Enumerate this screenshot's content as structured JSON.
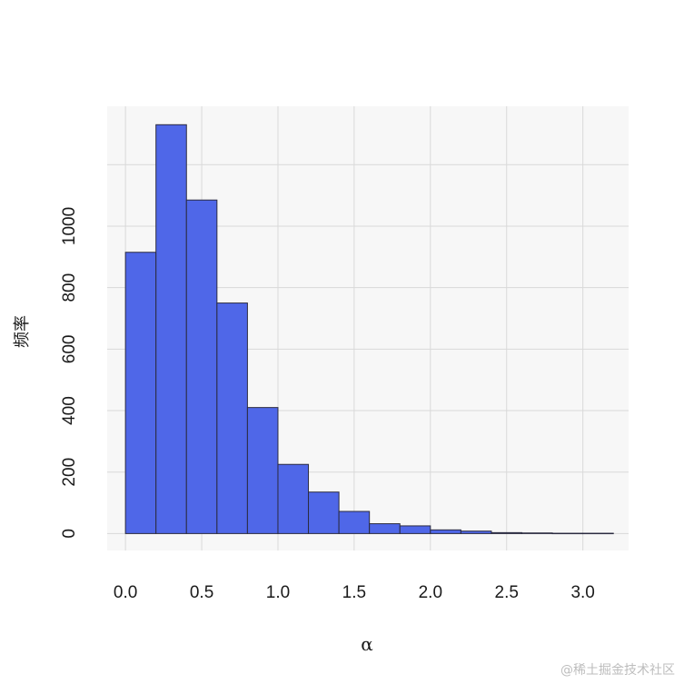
{
  "chart_data": {
    "type": "bar",
    "title": "",
    "xlabel": "α",
    "ylabel": "频率",
    "bin_width": 0.2,
    "bins": [
      {
        "start": 0.0,
        "end": 0.2,
        "count": 915
      },
      {
        "start": 0.2,
        "end": 0.4,
        "count": 1330
      },
      {
        "start": 0.4,
        "end": 0.6,
        "count": 1085
      },
      {
        "start": 0.6,
        "end": 0.8,
        "count": 750
      },
      {
        "start": 0.8,
        "end": 1.0,
        "count": 410
      },
      {
        "start": 1.0,
        "end": 1.2,
        "count": 225
      },
      {
        "start": 1.2,
        "end": 1.4,
        "count": 135
      },
      {
        "start": 1.4,
        "end": 1.6,
        "count": 72
      },
      {
        "start": 1.6,
        "end": 1.8,
        "count": 32
      },
      {
        "start": 1.8,
        "end": 2.0,
        "count": 25
      },
      {
        "start": 2.0,
        "end": 2.2,
        "count": 12
      },
      {
        "start": 2.2,
        "end": 2.4,
        "count": 8
      },
      {
        "start": 2.4,
        "end": 2.6,
        "count": 3
      },
      {
        "start": 2.6,
        "end": 2.8,
        "count": 2
      },
      {
        "start": 2.8,
        "end": 3.0,
        "count": 1
      },
      {
        "start": 3.0,
        "end": 3.2,
        "count": 1
      }
    ],
    "xlim": [
      -0.12,
      3.3
    ],
    "ylim": [
      -55,
      1390
    ],
    "x_ticks": [
      0.0,
      0.5,
      1.0,
      1.5,
      2.0,
      2.5,
      3.0
    ],
    "x_tick_labels": [
      "0.0",
      "0.5",
      "1.0",
      "1.5",
      "2.0",
      "2.5",
      "3.0"
    ],
    "y_ticks": [
      0,
      200,
      400,
      600,
      800,
      1000
    ],
    "y_tick_labels": [
      "0",
      "200",
      "400",
      "600",
      "800",
      "1000"
    ],
    "grid": true,
    "colors": {
      "bar_fill": "#4f67e8",
      "bar_stroke": "#2b2b40",
      "panel_bg": "#f7f7f7",
      "grid": "#d9d9d9"
    }
  },
  "watermark": "@稀土掘金技术社区"
}
